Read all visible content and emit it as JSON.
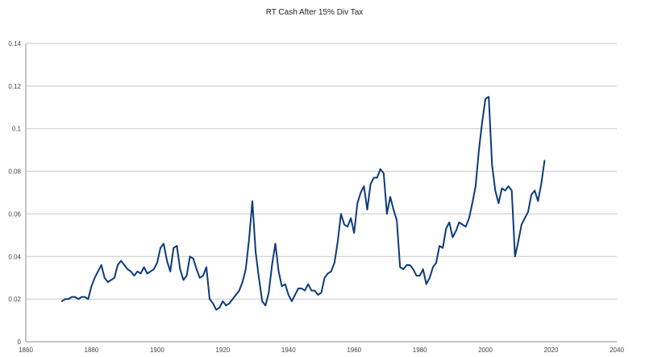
{
  "chart_data": {
    "type": "line",
    "title": "RT Cash After 15% Div Tax",
    "xlabel": "",
    "ylabel": "",
    "xlim": [
      1860,
      2040
    ],
    "ylim": [
      0,
      0.14
    ],
    "x_ticks": [
      "1860",
      "1880",
      "1900",
      "1920",
      "1940",
      "1960",
      "1980",
      "2000",
      "2020",
      "2040"
    ],
    "y_ticks": [
      "0",
      "0.02",
      "0.04",
      "0.06",
      "0.08",
      "0.1",
      "0.12",
      "0.14"
    ],
    "grid": "horizontal",
    "legend": "none",
    "color": "#0d3a7a",
    "series": [
      {
        "x": [
          1871,
          1872,
          1873,
          1874,
          1875,
          1876,
          1877,
          1878,
          1879,
          1880,
          1881,
          1882,
          1883,
          1884,
          1885,
          1886,
          1887,
          1888,
          1889,
          1890,
          1891,
          1892,
          1893,
          1894,
          1895,
          1896,
          1897,
          1898,
          1899,
          1900,
          1901,
          1902,
          1903,
          1904,
          1905,
          1906,
          1907,
          1908,
          1909,
          1910,
          1911,
          1912,
          1913,
          1914,
          1915,
          1916,
          1917,
          1918,
          1919,
          1920,
          1921,
          1922,
          1923,
          1924,
          1925,
          1926,
          1927,
          1928,
          1929,
          1930,
          1931,
          1932,
          1933,
          1934,
          1935,
          1936,
          1937,
          1938,
          1939,
          1940,
          1941,
          1942,
          1943,
          1944,
          1945,
          1946,
          1947,
          1948,
          1949,
          1950,
          1951,
          1952,
          1953,
          1954,
          1955,
          1956,
          1957,
          1958,
          1959,
          1960,
          1961,
          1962,
          1963,
          1964,
          1965,
          1966,
          1967,
          1968,
          1969,
          1970,
          1971,
          1972,
          1973,
          1974,
          1975,
          1976,
          1977,
          1978,
          1979,
          1980,
          1981,
          1982,
          1983,
          1984,
          1985,
          1986,
          1987,
          1988,
          1989,
          1990,
          1991,
          1992,
          1993,
          1994,
          1995,
          1996,
          1997,
          1998,
          1999,
          2000,
          2001,
          2002,
          2003,
          2004,
          2005,
          2006,
          2007,
          2008,
          2009,
          2010,
          2011,
          2012,
          2013,
          2014,
          2015,
          2016,
          2017,
          2018
        ],
        "y": [
          0.019,
          0.02,
          0.02,
          0.021,
          0.021,
          0.02,
          0.021,
          0.021,
          0.02,
          0.026,
          0.03,
          0.033,
          0.036,
          0.03,
          0.028,
          0.029,
          0.03,
          0.036,
          0.038,
          0.036,
          0.034,
          0.033,
          0.031,
          0.033,
          0.032,
          0.035,
          0.032,
          0.033,
          0.034,
          0.037,
          0.044,
          0.046,
          0.038,
          0.033,
          0.044,
          0.045,
          0.034,
          0.029,
          0.031,
          0.04,
          0.039,
          0.034,
          0.03,
          0.031,
          0.035,
          0.02,
          0.018,
          0.015,
          0.016,
          0.019,
          0.017,
          0.018,
          0.02,
          0.022,
          0.024,
          0.028,
          0.034,
          0.048,
          0.066,
          0.042,
          0.03,
          0.019,
          0.017,
          0.023,
          0.036,
          0.046,
          0.033,
          0.026,
          0.027,
          0.022,
          0.019,
          0.022,
          0.025,
          0.025,
          0.024,
          0.027,
          0.024,
          0.024,
          0.022,
          0.023,
          0.03,
          0.032,
          0.033,
          0.037,
          0.047,
          0.06,
          0.055,
          0.054,
          0.058,
          0.051,
          0.065,
          0.07,
          0.073,
          0.062,
          0.074,
          0.077,
          0.077,
          0.081,
          0.079,
          0.06,
          0.068,
          0.062,
          0.057,
          0.035,
          0.034,
          0.036,
          0.036,
          0.034,
          0.031,
          0.031,
          0.034,
          0.027,
          0.03,
          0.035,
          0.037,
          0.045,
          0.044,
          0.053,
          0.056,
          0.049,
          0.052,
          0.056,
          0.055,
          0.054,
          0.058,
          0.065,
          0.073,
          0.09,
          0.103,
          0.114,
          0.115,
          0.083,
          0.071,
          0.065,
          0.072,
          0.071,
          0.073,
          0.071,
          0.04,
          0.047,
          0.055,
          0.058,
          0.061,
          0.069,
          0.071,
          0.066,
          0.074,
          0.085
        ]
      }
    ]
  }
}
